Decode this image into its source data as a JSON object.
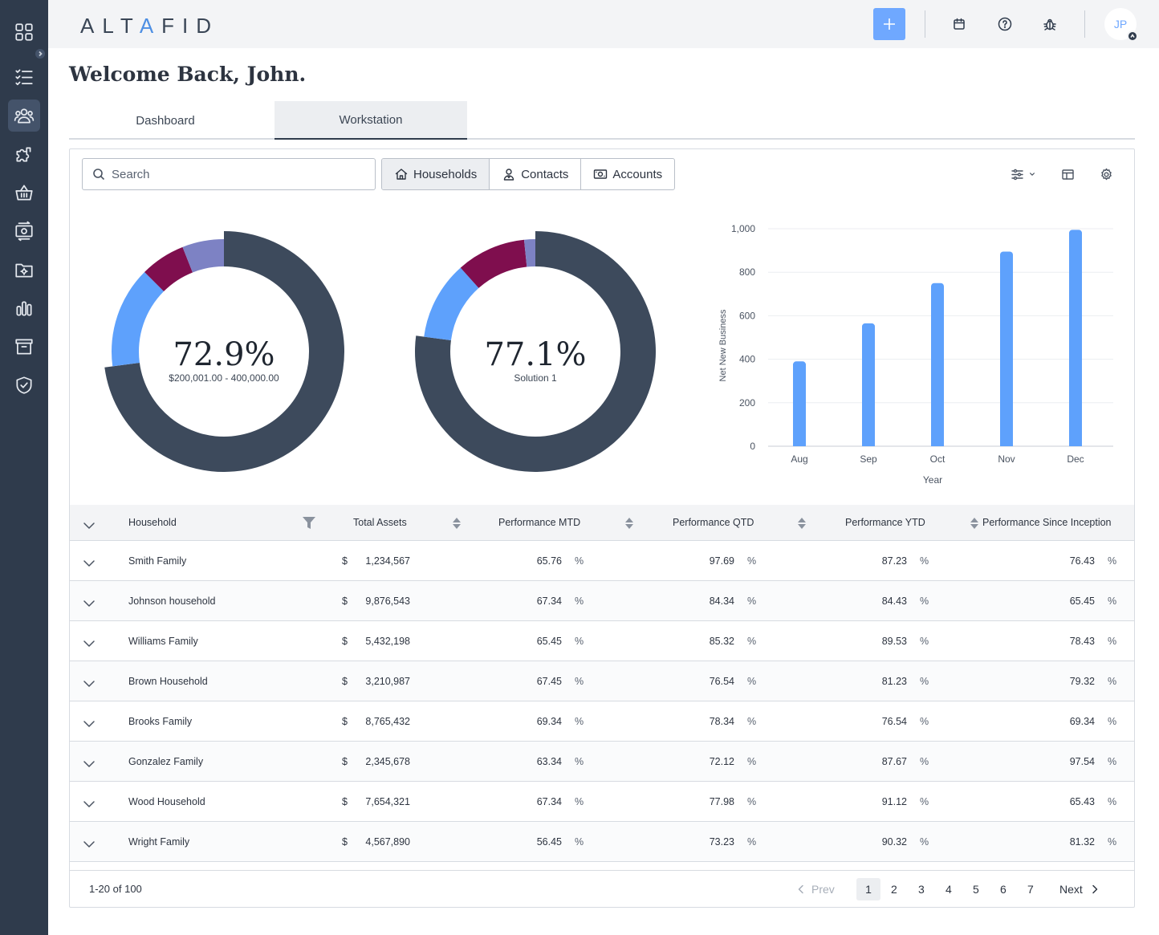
{
  "app": {
    "logo_text_pre": "ALT",
    "logo_text_accent": "A",
    "logo_text_post": "FID",
    "avatar_initials": "JP",
    "brand_color": "#6fa8ff",
    "sidebar_color": "#2f3b4c"
  },
  "sidebar": {
    "items": [
      {
        "icon": "grid-icon"
      },
      {
        "icon": "checklist-icon"
      },
      {
        "icon": "users-icon",
        "active": true
      },
      {
        "icon": "puzzle-icon"
      },
      {
        "icon": "basket-icon"
      },
      {
        "icon": "money-transfer-icon"
      },
      {
        "icon": "folder-settings-icon"
      },
      {
        "icon": "bar-chart-icon"
      },
      {
        "icon": "archive-icon"
      },
      {
        "icon": "shield-check-icon"
      }
    ]
  },
  "topbar": {
    "icons": [
      "plus-icon",
      "calendar-icon",
      "help-icon",
      "bug-icon"
    ]
  },
  "greeting": "Welcome Back, John.",
  "tabs": [
    {
      "label": "Dashboard",
      "active": false
    },
    {
      "label": "Workstation",
      "active": true
    }
  ],
  "toolbar": {
    "search_placeholder": "Search",
    "segments": [
      {
        "label": "Households",
        "icon": "home-icon",
        "active": true
      },
      {
        "label": "Contacts",
        "icon": "contact-icon",
        "active": false
      },
      {
        "label": "Accounts",
        "icon": "cash-icon",
        "active": false
      }
    ]
  },
  "donuts": [
    {
      "value": "72.9%",
      "subtitle": "$200,001.00 - 400,000.00",
      "segments": [
        {
          "fraction": 0.729,
          "color": "#3d4a5c"
        },
        {
          "fraction": 0.146,
          "color": "#5ea1fc"
        },
        {
          "fraction": 0.065,
          "color": "#7f0e4e"
        },
        {
          "fraction": 0.06,
          "color": "#7d82c4"
        }
      ]
    },
    {
      "value": "77.1%",
      "subtitle": "Solution 1",
      "segments": [
        {
          "fraction": 0.771,
          "color": "#3d4a5c"
        },
        {
          "fraction": 0.113,
          "color": "#5ea1fc"
        },
        {
          "fraction": 0.1,
          "color": "#7f0e4e"
        },
        {
          "fraction": 0.016,
          "color": "#7d82c4"
        }
      ]
    }
  ],
  "chart_data": {
    "type": "bar",
    "categories": [
      "Aug",
      "Sep",
      "Oct",
      "Nov",
      "Dec"
    ],
    "values": [
      390,
      565,
      750,
      895,
      995
    ],
    "xlabel": "Year",
    "ylabel": "Net New Business",
    "ylim": [
      0,
      1000
    ],
    "yticks": [
      "0",
      "200",
      "400",
      "600",
      "800",
      "1,000"
    ],
    "ytick_values": [
      0,
      200,
      400,
      600,
      800,
      1000
    ],
    "bar_color": "#5ea1fc",
    "grid": true
  },
  "table": {
    "columns": {
      "household": "Household",
      "total_assets": "Total Assets",
      "mtd": "Performance MTD",
      "qtd": "Performance QTD",
      "ytd": "Performance YTD",
      "inception": "Performance Since Inception"
    },
    "currency_symbol": "$",
    "percent_symbol": "%",
    "rows": [
      {
        "household": "Smith Family",
        "assets": "1,234,567",
        "mtd": "65.76",
        "qtd": "97.69",
        "ytd": "87.23",
        "inception": "76.43"
      },
      {
        "household": "Johnson household",
        "assets": "9,876,543",
        "mtd": "67.34",
        "qtd": "84.34",
        "ytd": "84.43",
        "inception": "65.45"
      },
      {
        "household": "Williams Family",
        "assets": "5,432,198",
        "mtd": "65.45",
        "qtd": "85.32",
        "ytd": "89.53",
        "inception": "78.43"
      },
      {
        "household": "Brown Household",
        "assets": "3,210,987",
        "mtd": "67.45",
        "qtd": "76.54",
        "ytd": "81.23",
        "inception": "79.32"
      },
      {
        "household": "Brooks Family",
        "assets": "8,765,432",
        "mtd": "69.34",
        "qtd": "78.34",
        "ytd": "76.54",
        "inception": "69.34"
      },
      {
        "household": "Gonzalez Family",
        "assets": "2,345,678",
        "mtd": "63.34",
        "qtd": "72.12",
        "ytd": "87.67",
        "inception": "97.54"
      },
      {
        "household": "Wood Household",
        "assets": "7,654,321",
        "mtd": "67.34",
        "qtd": "77.98",
        "ytd": "91.12",
        "inception": "65.43"
      },
      {
        "household": "Wright Family",
        "assets": "4,567,890",
        "mtd": "56.45",
        "qtd": "73.23",
        "ytd": "90.32",
        "inception": "81.32"
      }
    ]
  },
  "pagination": {
    "range": "1-20 of 100",
    "prev": "Prev",
    "next": "Next",
    "pages": [
      "1",
      "2",
      "3",
      "4",
      "5",
      "6",
      "7"
    ],
    "current": "1"
  }
}
